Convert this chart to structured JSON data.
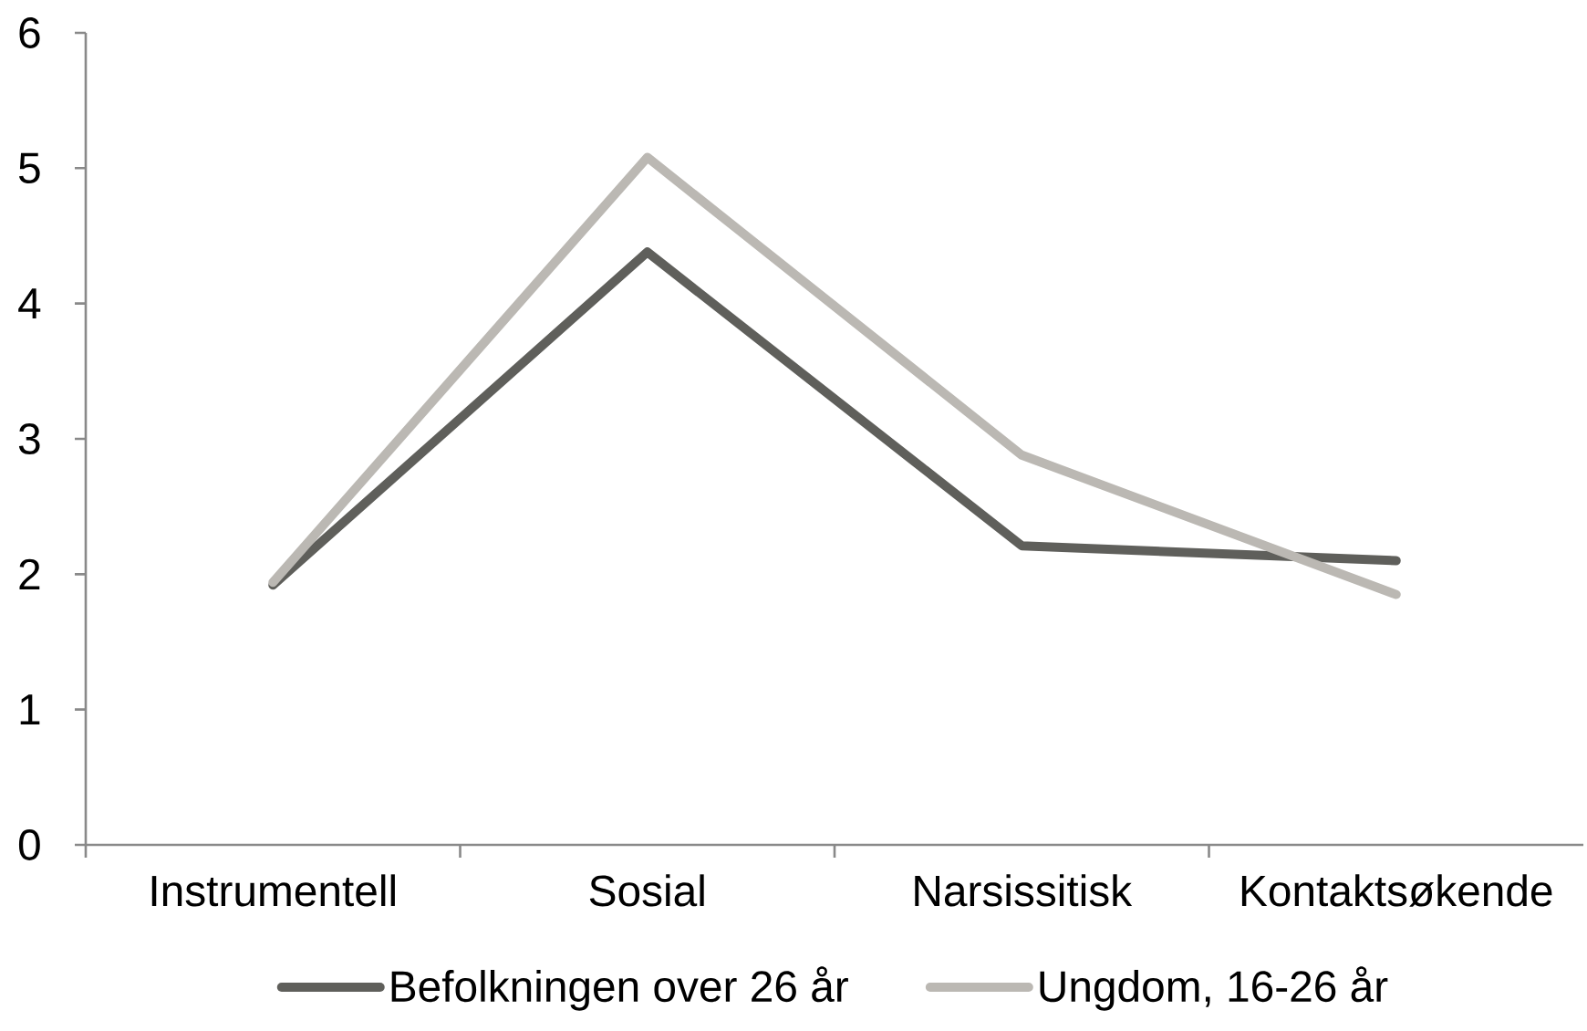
{
  "chart_data": {
    "type": "line",
    "categories": [
      "Instrumentell",
      "Sosial",
      "Narsissitisk",
      "Kontaktsøkende"
    ],
    "series": [
      {
        "name": "Befolkningen over 26 år",
        "color": "#5f5f5b",
        "values": [
          1.92,
          4.38,
          2.21,
          2.1
        ]
      },
      {
        "name": "Ungdom, 16-26 år",
        "color": "#bbb8b3",
        "values": [
          1.94,
          5.08,
          2.88,
          1.85
        ]
      }
    ],
    "ylim": [
      0,
      6
    ],
    "yticks": [
      0,
      1,
      2,
      3,
      4,
      5,
      6
    ],
    "legend": "bottom",
    "marker": "none",
    "line_style": "solid"
  }
}
